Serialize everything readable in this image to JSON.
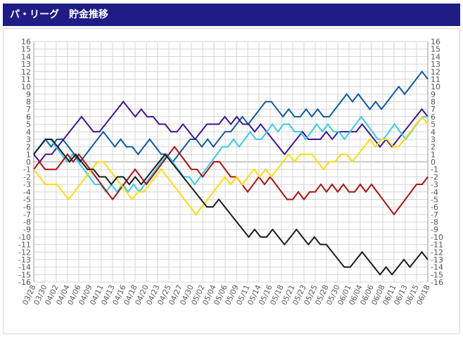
{
  "header": {
    "title": "パ・リーグ　貯金推移"
  },
  "chart_data": {
    "type": "line",
    "title": "",
    "xlabel": "",
    "ylabel": "",
    "ylim": [
      -16,
      16
    ],
    "yticks": [
      16,
      15,
      14,
      13,
      12,
      11,
      10,
      9,
      8,
      7,
      6,
      5,
      4,
      3,
      2,
      1,
      0,
      -1,
      -2,
      -3,
      -4,
      -5,
      -6,
      -7,
      -8,
      -9,
      -10,
      -11,
      -12,
      -13,
      -14,
      -15,
      -16
    ],
    "xticks": [
      "03/28",
      "03/30",
      "04/02",
      "04/04",
      "04/06",
      "04/09",
      "04/11",
      "04/13",
      "04/16",
      "04/18",
      "04/20",
      "04/23",
      "04/25",
      "04/27",
      "04/30",
      "05/02",
      "05/04",
      "05/06",
      "05/09",
      "05/11",
      "05/14",
      "05/16",
      "05/18",
      "05/21",
      "05/23",
      "05/25",
      "05/28",
      "05/30",
      "06/01",
      "06/04",
      "06/06",
      "06/08",
      "06/11",
      "06/13",
      "06/15",
      "06/18"
    ],
    "grid": true,
    "series": [
      {
        "color": "#0a5aa0",
        "values": [
          1,
          2,
          3,
          2,
          3,
          3,
          2,
          1,
          0,
          1,
          2,
          3,
          4,
          3,
          2,
          3,
          2,
          2,
          1,
          2,
          3,
          2,
          1,
          1,
          0,
          1,
          2,
          3,
          3,
          2,
          3,
          2,
          3,
          4,
          4,
          5,
          6,
          5,
          6,
          7,
          8,
          8,
          7,
          6,
          7,
          6,
          6,
          7,
          6,
          7,
          6,
          6,
          7,
          8,
          9,
          8,
          9,
          8,
          7,
          8,
          7,
          8,
          9,
          10,
          9,
          10,
          11,
          12,
          11
        ]
      },
      {
        "color": "#3d1296",
        "values": [
          1,
          0,
          1,
          1,
          2,
          3,
          4,
          5,
          6,
          5,
          4,
          4,
          5,
          6,
          7,
          8,
          7,
          6,
          7,
          6,
          6,
          5,
          5,
          4,
          4,
          5,
          4,
          3,
          4,
          5,
          5,
          5,
          6,
          5,
          6,
          5,
          5,
          4,
          5,
          4,
          3,
          2,
          1,
          2,
          3,
          4,
          3,
          3,
          3,
          4,
          3,
          4,
          4,
          4,
          4,
          5,
          4,
          3,
          2,
          3,
          2,
          3,
          4,
          5,
          6,
          7,
          6
        ]
      },
      {
        "color": "#33ccee",
        "values": [
          1,
          2,
          3,
          3,
          2,
          1,
          0,
          1,
          0,
          -1,
          -2,
          -3,
          -3,
          -4,
          -3,
          -4,
          -3,
          -4,
          -3,
          -4,
          -3,
          -2,
          -1,
          0,
          1,
          0,
          -1,
          -2,
          -2,
          -3,
          -2,
          -1,
          0,
          1,
          2,
          2,
          3,
          2,
          3,
          4,
          3,
          3,
          4,
          5,
          4,
          5,
          5,
          4,
          4,
          3,
          4,
          5,
          4,
          5,
          4,
          4,
          3,
          4,
          5,
          6,
          5,
          4,
          3,
          3,
          4,
          5,
          4,
          3,
          4,
          5,
          6,
          6
        ]
      },
      {
        "color": "#b20e0e",
        "values": [
          -1,
          0,
          -1,
          -1,
          -1,
          0,
          1,
          0,
          1,
          0,
          -1,
          -2,
          -3,
          -4,
          -5,
          -4,
          -3,
          -2,
          -1,
          -2,
          -3,
          -2,
          -1,
          0,
          1,
          2,
          1,
          0,
          -1,
          -1,
          -2,
          -1,
          0,
          0,
          -1,
          -2,
          -2,
          -3,
          -4,
          -3,
          -2,
          -3,
          -2,
          -3,
          -4,
          -5,
          -5,
          -4,
          -5,
          -4,
          -4,
          -3,
          -4,
          -3,
          -4,
          -3,
          -4,
          -4,
          -3,
          -4,
          -3,
          -4,
          -5,
          -6,
          -7,
          -6,
          -5,
          -4,
          -3,
          -3,
          -2
        ]
      },
      {
        "color": "#ffdd00",
        "values": [
          -1,
          -2,
          -3,
          -3,
          -3,
          -4,
          -5,
          -4,
          -3,
          -2,
          -1,
          0,
          0,
          -1,
          -2,
          -3,
          -4,
          -5,
          -4,
          -4,
          -3,
          -2,
          -1,
          -2,
          -3,
          -4,
          -5,
          -6,
          -7,
          -6,
          -5,
          -4,
          -3,
          -2,
          -3,
          -2,
          -3,
          -2,
          -1,
          -2,
          -1,
          -2,
          -1,
          0,
          1,
          0,
          1,
          1,
          1,
          0,
          -1,
          0,
          0,
          1,
          1,
          0,
          1,
          2,
          3,
          2,
          3,
          3,
          2,
          2,
          3,
          4,
          5,
          6,
          5
        ]
      },
      {
        "color": "#1a1a1a",
        "values": [
          1,
          2,
          3,
          3,
          2,
          1,
          0,
          1,
          0,
          -1,
          -1,
          -2,
          -2,
          -3,
          -2,
          -2,
          -3,
          -2,
          -3,
          -2,
          -1,
          0,
          1,
          0,
          -1,
          -2,
          -3,
          -4,
          -5,
          -6,
          -6,
          -5,
          -6,
          -7,
          -8,
          -9,
          -10,
          -9,
          -10,
          -10,
          -9,
          -10,
          -11,
          -10,
          -9,
          -10,
          -11,
          -10,
          -11,
          -11,
          -12,
          -13,
          -14,
          -14,
          -13,
          -12,
          -13,
          -14,
          -15,
          -14,
          -15,
          -14,
          -13,
          -14,
          -13,
          -12,
          -13
        ]
      }
    ]
  }
}
